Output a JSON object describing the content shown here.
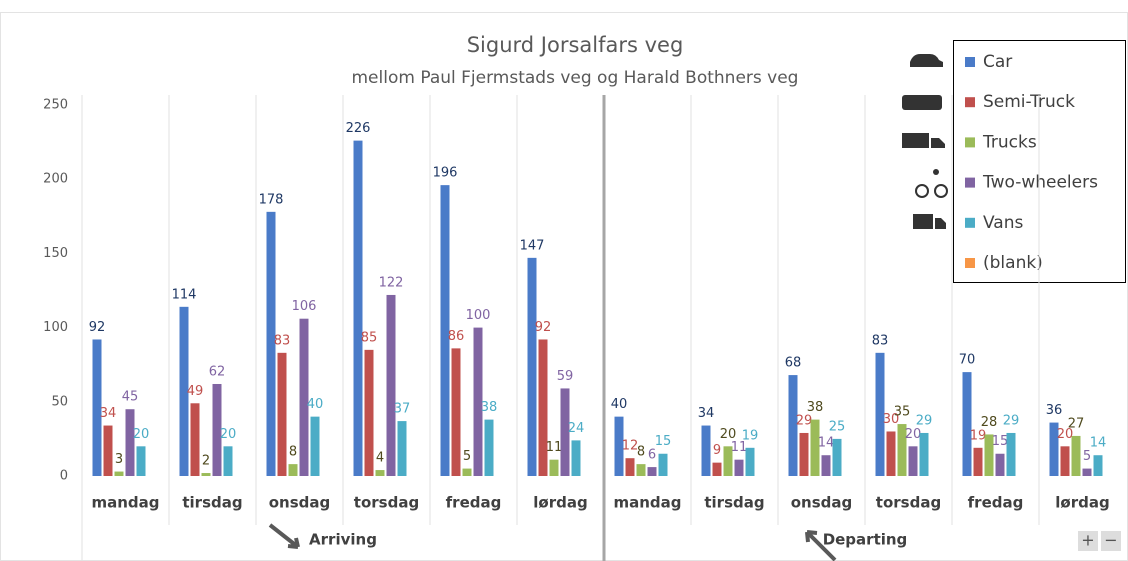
{
  "chart_data": {
    "type": "bar",
    "title": "Sigurd Jorsalfars veg",
    "subtitle": "mellom Paul Fjermstads veg og Harald Bothners veg",
    "groups": [
      {
        "name": "Arriving",
        "categories": [
          "mandag",
          "tirsdag",
          "onsdag",
          "torsdag",
          "fredag",
          "lørdag"
        ]
      },
      {
        "name": "Departing",
        "categories": [
          "mandag",
          "tirsdag",
          "onsdag",
          "torsdag",
          "fredag",
          "lørdag"
        ]
      }
    ],
    "series": [
      {
        "name": "Car",
        "color": "#4a7bc8",
        "label_color": "#1f3864",
        "values": [
          92,
          114,
          178,
          226,
          196,
          147,
          40,
          34,
          68,
          83,
          70,
          36
        ]
      },
      {
        "name": "Semi-Truck",
        "color": "#c0504d",
        "label_color": "#c0504d",
        "values": [
          34,
          49,
          83,
          85,
          86,
          92,
          12,
          9,
          29,
          30,
          19,
          20
        ]
      },
      {
        "name": "Trucks",
        "color": "#9bbb59",
        "label_color": "#4f4a1e",
        "values": [
          3,
          2,
          8,
          4,
          5,
          11,
          8,
          20,
          38,
          35,
          28,
          27
        ]
      },
      {
        "name": "Two-wheelers",
        "color": "#8064a2",
        "label_color": "#8064a2",
        "values": [
          45,
          62,
          106,
          122,
          100,
          59,
          6,
          11,
          14,
          20,
          15,
          5
        ]
      },
      {
        "name": "Vans",
        "color": "#4bacc6",
        "label_color": "#4bacc6",
        "values": [
          20,
          20,
          40,
          37,
          38,
          24,
          15,
          19,
          25,
          29,
          29,
          14
        ]
      },
      {
        "name": "(blank)",
        "color": "#f79646",
        "label_color": "#f79646",
        "values": [
          null,
          null,
          null,
          null,
          null,
          null,
          null,
          null,
          null,
          null,
          null,
          null
        ]
      }
    ],
    "ylim": [
      0,
      250
    ],
    "yticks": [
      0,
      50,
      100,
      150,
      200,
      250
    ],
    "legend": "top-right"
  }
}
